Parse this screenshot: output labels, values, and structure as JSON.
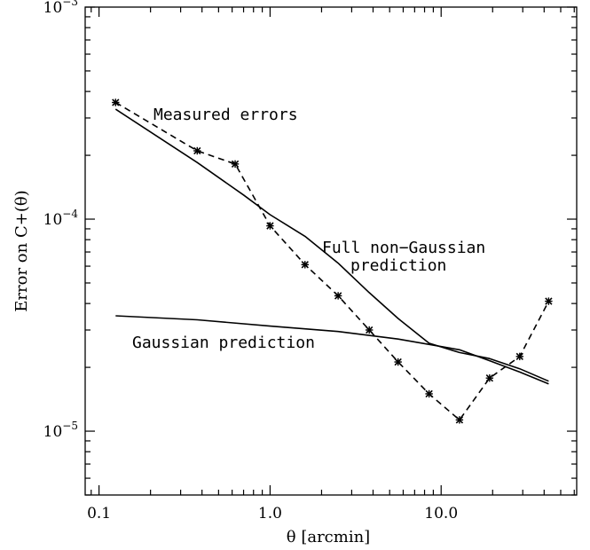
{
  "chart_data": {
    "type": "line",
    "title": "",
    "xlabel": "θ [arcmin]",
    "ylabel": "Error on C+(θ)",
    "xscale": "log",
    "yscale": "log",
    "xlim": [
      0.083,
      62
    ],
    "ylim": [
      5e-06,
      0.001
    ],
    "grid": false,
    "x_ticks": [
      {
        "value": 0.1,
        "label": "0.1"
      },
      {
        "value": 1.0,
        "label": "1.0"
      },
      {
        "value": 10.0,
        "label": "10.0"
      }
    ],
    "y_ticks": [
      {
        "value": 1e-05,
        "base": "10",
        "exp": "−5"
      },
      {
        "value": 0.0001,
        "base": "10",
        "exp": "−4"
      },
      {
        "value": 0.001,
        "base": "10",
        "exp": "−3"
      }
    ],
    "series": [
      {
        "name": "Measured errors",
        "style": "dashed",
        "markers": true,
        "x": [
          0.125,
          0.375,
          0.625,
          1.0,
          1.6,
          2.5,
          3.8,
          5.6,
          8.5,
          12.8,
          19.2,
          28.8,
          42.5
        ],
        "y": [
          0.000355,
          0.00021,
          0.000182,
          9.3e-05,
          6.1e-05,
          4.35e-05,
          3e-05,
          2.12e-05,
          1.5e-05,
          1.13e-05,
          1.78e-05,
          2.25e-05,
          4.1e-05
        ]
      },
      {
        "name": "Full non−Gaussian prediction",
        "style": "solid",
        "markers": false,
        "x": [
          0.125,
          0.375,
          0.7,
          1.0,
          1.6,
          2.5,
          3.8,
          5.6,
          8.5,
          12.8,
          19.2,
          28.8,
          42.5
        ],
        "y": [
          0.00033,
          0.000185,
          0.00013,
          0.000105,
          8.3e-05,
          6.2e-05,
          4.5e-05,
          3.4e-05,
          2.6e-05,
          2.35e-05,
          2.2e-05,
          1.97e-05,
          1.72e-05
        ]
      },
      {
        "name": "Gaussian prediction",
        "style": "solid",
        "markers": false,
        "x": [
          0.125,
          0.375,
          1.0,
          2.5,
          5.6,
          12.8,
          19.2,
          28.8,
          42.5
        ],
        "y": [
          3.5e-05,
          3.35e-05,
          3.13e-05,
          2.95e-05,
          2.72e-05,
          2.42e-05,
          2.15e-05,
          1.9e-05,
          1.67e-05
        ]
      }
    ],
    "annotations": {
      "measured": "Measured errors",
      "full_line1": "Full non−Gaussian",
      "full_line2": "prediction",
      "gaussian": "Gaussian prediction"
    }
  }
}
